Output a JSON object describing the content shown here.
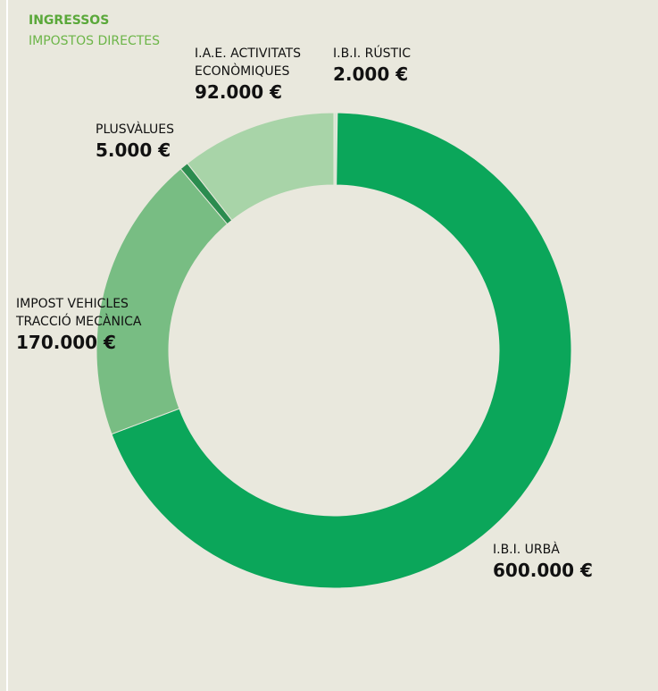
{
  "chart_data": {
    "type": "donut",
    "title": "INGRESSOS",
    "subtitle": "IMPOSTOS DIRECTES",
    "categories": [
      "I.B.I. RÚSTIC",
      "I.B.I. URBÀ",
      "IMPOST VEHICLES TRACCIÓ MECÀNICA",
      "PLUSVÀLUES",
      "I.A.E. ACTIVITATS ECONÒMIQUES"
    ],
    "values": [
      2000,
      600000,
      170000,
      5000,
      92000
    ],
    "value_labels": [
      "2.000 €",
      "600.000 €",
      "170.000 €",
      "5.000 €",
      "92.000 €"
    ],
    "colors": [
      "#d6e6d4",
      "#0ba65a",
      "#78bd83",
      "#2b8c4f",
      "#a8d4a8"
    ]
  }
}
